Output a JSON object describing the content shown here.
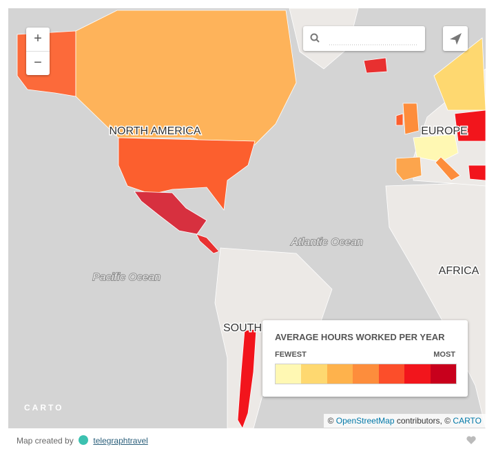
{
  "map": {
    "zoom_in": "+",
    "zoom_out": "−",
    "labels": {
      "north_america": "NORTH AMERICA",
      "europe": "EUROPE",
      "africa": "AFRICA",
      "south": "SOUTH",
      "atlantic": "Atlantic Ocean",
      "pacific": "Pacific Ocean"
    },
    "logo": "CARTO",
    "legend": {
      "title": "AVERAGE HOURS WORKED PER YEAR",
      "low": "FEWEST",
      "high": "MOST",
      "colors": [
        "#fff8b3",
        "#fed870",
        "#feb24c",
        "#fd8d3c",
        "#fc4e2a",
        "#f2151c",
        "#c8001c"
      ]
    },
    "attribution": {
      "prefix": "©",
      "osm": "OpenStreetMap",
      "mid": "contributors, ©",
      "carto": "CARTO"
    }
  },
  "footer": {
    "text": "Map created by",
    "user": "telegraphtravel"
  }
}
